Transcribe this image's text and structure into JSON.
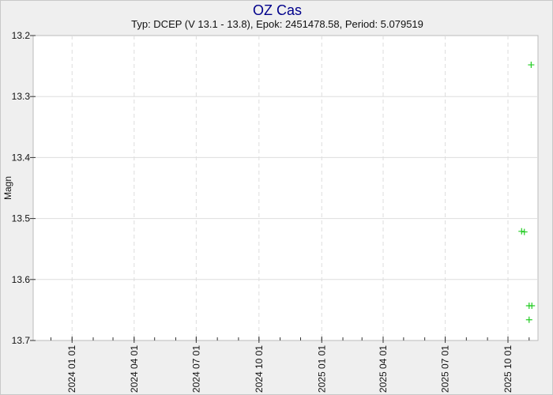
{
  "chart_data": {
    "type": "scatter",
    "title": "OZ Cas",
    "subtitle": "Typ: DCEP (V 13.1 - 13.8), Epok: 2451478.58, Period: 5.079519",
    "xlabel": "",
    "ylabel": "Magn",
    "xlim": [
      "2023-11-05",
      "2025-11-14"
    ],
    "ylim": [
      13.2,
      13.7
    ],
    "y_inverted": true,
    "grid": true,
    "x_ticks": [
      "2024 01 01",
      "2024 04 01",
      "2024 07 01",
      "2024 10 01",
      "2025 01 01",
      "2025 04 01",
      "2025 07 01",
      "2025 10 01"
    ],
    "y_ticks": [
      "13.2",
      "13.3",
      "13.4",
      "13.5",
      "13.6",
      "13.7"
    ],
    "marker": "plus",
    "color": "#22cc22",
    "points": [
      {
        "x": "2025-11-04",
        "y": 13.248
      },
      {
        "x": "2025-10-21",
        "y": 13.521
      },
      {
        "x": "2025-10-25",
        "y": 13.522
      },
      {
        "x": "2025-11-01",
        "y": 13.643
      },
      {
        "x": "2025-11-05",
        "y": 13.643
      },
      {
        "x": "2025-11-01",
        "y": 13.666
      }
    ]
  }
}
